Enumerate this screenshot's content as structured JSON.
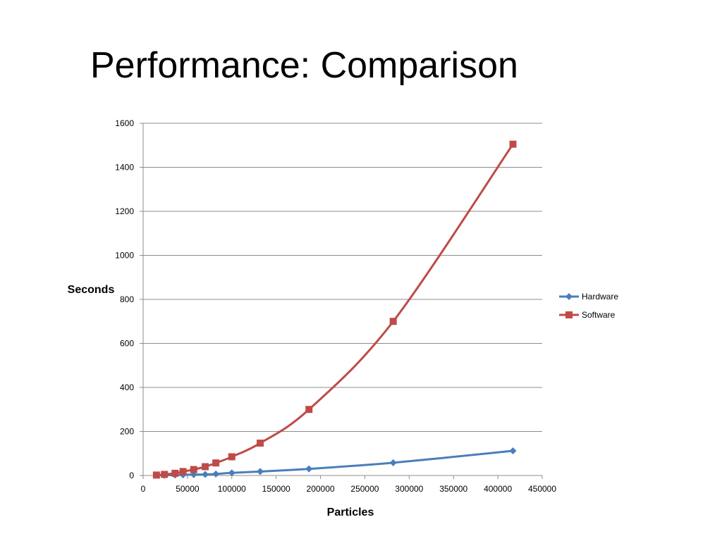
{
  "slide": {
    "title": "Performance: Comparison"
  },
  "chart_data": {
    "type": "line",
    "title": "",
    "xlabel": "Particles",
    "ylabel": "Seconds",
    "xlim": [
      0,
      450000
    ],
    "ylim": [
      0,
      1600
    ],
    "x_ticks": [
      0,
      50000,
      100000,
      150000,
      200000,
      250000,
      300000,
      350000,
      400000,
      450000
    ],
    "y_ticks": [
      0,
      200,
      400,
      600,
      800,
      1000,
      1200,
      1400,
      1600
    ],
    "grid": "horizontal",
    "legend_position": "right",
    "series": [
      {
        "name": "Hardware",
        "color": "#4a7ebb",
        "marker": "diamond",
        "x": [
          15000,
          24000,
          36000,
          45000,
          57000,
          70000,
          82000,
          100000,
          132000,
          187000,
          282000,
          417000
        ],
        "y": [
          1,
          1,
          2,
          3,
          4,
          5,
          7,
          12,
          18,
          30,
          58,
          112
        ]
      },
      {
        "name": "Software",
        "color": "#be4b48",
        "marker": "square",
        "x": [
          15000,
          24000,
          36000,
          45000,
          57000,
          70000,
          82000,
          100000,
          132000,
          187000,
          282000,
          417000
        ],
        "y": [
          2,
          5,
          10,
          18,
          27,
          40,
          57,
          85,
          147,
          300,
          700,
          1505
        ]
      }
    ]
  }
}
